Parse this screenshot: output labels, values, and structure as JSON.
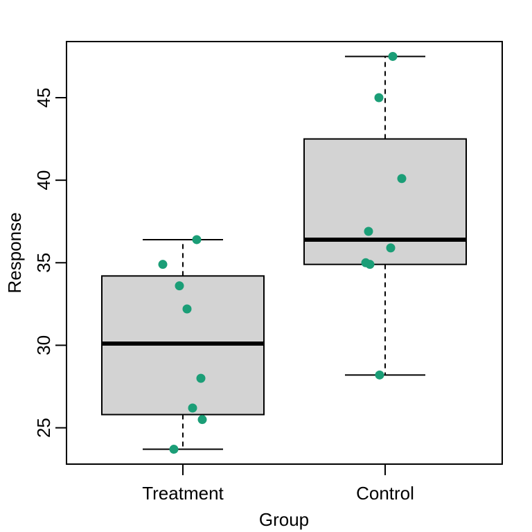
{
  "chart_data": {
    "type": "box",
    "title": "",
    "xlabel": "Group",
    "ylabel": "Response",
    "ylim": [
      22.8,
      48.4
    ],
    "yticks": [
      25,
      30,
      35,
      40,
      45
    ],
    "grid": false,
    "categories": [
      "Treatment",
      "Control"
    ],
    "boxes": [
      {
        "name": "Treatment",
        "min": 23.7,
        "q1": 25.8,
        "median": 30.1,
        "q3": 34.2,
        "max": 36.4
      },
      {
        "name": "Control",
        "min": 28.2,
        "q1": 34.9,
        "median": 36.4,
        "q3": 42.5,
        "max": 47.5
      }
    ],
    "points": [
      {
        "group": "Treatment",
        "y": 36.4
      },
      {
        "group": "Treatment",
        "y": 34.9
      },
      {
        "group": "Treatment",
        "y": 33.6
      },
      {
        "group": "Treatment",
        "y": 32.2
      },
      {
        "group": "Treatment",
        "y": 28.0
      },
      {
        "group": "Treatment",
        "y": 26.2
      },
      {
        "group": "Treatment",
        "y": 25.5
      },
      {
        "group": "Treatment",
        "y": 23.7
      },
      {
        "group": "Control",
        "y": 47.5
      },
      {
        "group": "Control",
        "y": 45.0
      },
      {
        "group": "Control",
        "y": 40.1
      },
      {
        "group": "Control",
        "y": 36.9
      },
      {
        "group": "Control",
        "y": 35.9
      },
      {
        "group": "Control",
        "y": 35.0
      },
      {
        "group": "Control",
        "y": 34.9
      },
      {
        "group": "Control",
        "y": 28.2
      }
    ],
    "colors": {
      "box_fill": "#d3d3d3",
      "point": "#1b9e77",
      "line": "#000000"
    }
  }
}
